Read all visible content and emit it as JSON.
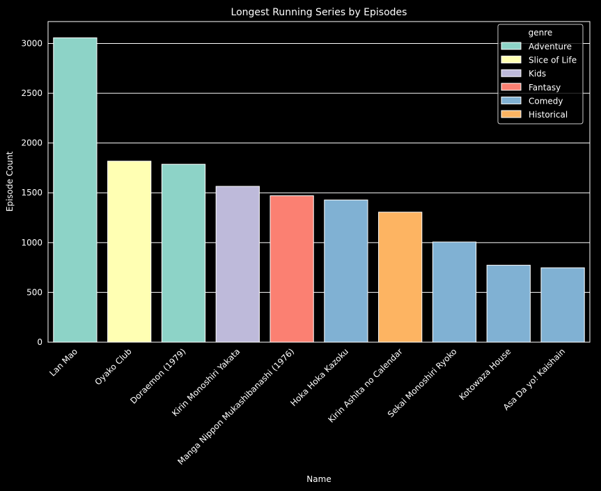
{
  "chart_data": {
    "type": "bar",
    "title": "Longest Running Series by Episodes",
    "xlabel": "Name",
    "ylabel": "Episode Count",
    "ylim": [
      0,
      3220
    ],
    "yticks": [
      0,
      500,
      1000,
      1500,
      2000,
      2500,
      3000
    ],
    "grid": "horizontal",
    "legend_position": "top-right",
    "legend_title": "genre",
    "genres": [
      {
        "name": "Adventure",
        "color": "#8dd3c7"
      },
      {
        "name": "Slice of Life",
        "color": "#ffffb3"
      },
      {
        "name": "Kids",
        "color": "#bebada"
      },
      {
        "name": "Fantasy",
        "color": "#fb8072"
      },
      {
        "name": "Comedy",
        "color": "#80b1d3"
      },
      {
        "name": "Historical",
        "color": "#fdb462"
      }
    ],
    "bars": [
      {
        "name": "Lan Mao",
        "value": 3057,
        "genre": "Adventure"
      },
      {
        "name": "Oyako Club",
        "value": 1818,
        "genre": "Slice of Life"
      },
      {
        "name": "Doraemon (1979)",
        "value": 1787,
        "genre": "Adventure"
      },
      {
        "name": "Kirin Monoshiri Yakata",
        "value": 1565,
        "genre": "Kids"
      },
      {
        "name": "Manga Nippon Mukashibanashi (1976)",
        "value": 1471,
        "genre": "Fantasy"
      },
      {
        "name": "Hoka Hoka Kazoku",
        "value": 1428,
        "genre": "Comedy"
      },
      {
        "name": "Kirin Ashita no Calendar",
        "value": 1306,
        "genre": "Historical"
      },
      {
        "name": "Sekai Monoshiri Ryoko",
        "value": 1006,
        "genre": "Comedy"
      },
      {
        "name": "Kotowaza House",
        "value": 773,
        "genre": "Comedy"
      },
      {
        "name": "Asa Da yo! Kaishain",
        "value": 747,
        "genre": "Comedy"
      }
    ]
  }
}
